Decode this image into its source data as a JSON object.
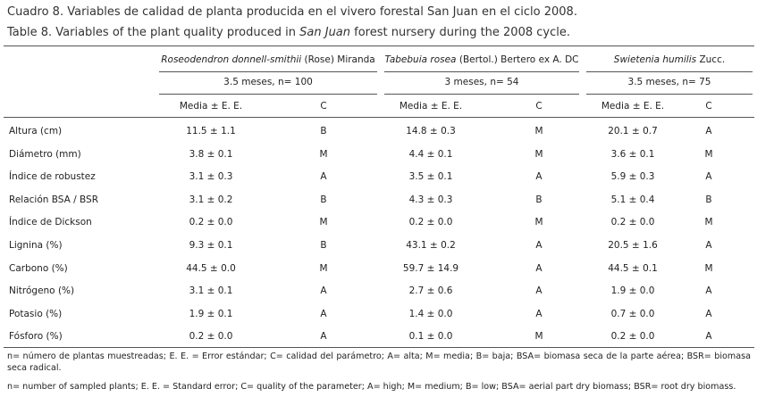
{
  "caption": {
    "es": "Cuadro 8. Variables de calidad de planta producida en el vivero forestal San Juan en el ciclo 2008.",
    "en": [
      "Table 8. Variables of the plant quality produced in ",
      "San Juan",
      " forest nursery during the 2008 cycle."
    ]
  },
  "table": {
    "species": [
      {
        "name": "Roseodendron donnell-smithii",
        "author": "(Rose) Miranda",
        "sample": "3.5 meses, n= 100"
      },
      {
        "name": "Tabebuia rosea",
        "author": "(Bertol.) Bertero ex A. DC",
        "sample": "3 meses, n= 54"
      },
      {
        "name": "Swietenia humilis",
        "author": "Zucc.",
        "sample": "3.5 meses, n= 75"
      }
    ],
    "subheaders": [
      "Media ± E. E.",
      "C"
    ],
    "rows": [
      [
        "Altura (cm)",
        "11.5 ± 1.1",
        "B",
        "14.8 ± 0.3",
        "M",
        "20.1 ± 0.7",
        "A"
      ],
      [
        "Diámetro (mm)",
        "3.8 ± 0.1",
        "M",
        "4.4 ± 0.1",
        "M",
        "3.6 ± 0.1",
        "M"
      ],
      [
        "Índice de robustez",
        "3.1 ± 0.3",
        "A",
        "3.5 ± 0.1",
        "A",
        "5.9 ± 0.3",
        "A"
      ],
      [
        "Relación BSA / BSR",
        "3.1 ± 0.2",
        "B",
        "4.3 ± 0.3",
        "B",
        "5.1 ± 0.4",
        "B"
      ],
      [
        "Índice de Dickson",
        "0.2 ± 0.0",
        "M",
        "0.2 ± 0.0",
        "M",
        "0.2 ± 0.0",
        "M"
      ],
      [
        "Lignina (%)",
        "9.3 ± 0.1",
        "B",
        "43.1 ± 0.2",
        "A",
        "20.5 ± 1.6",
        "A"
      ],
      [
        "Carbono (%)",
        "44.5 ± 0.0",
        "M",
        "59.7 ± 14.9",
        "A",
        "44.5 ± 0.1",
        "M"
      ],
      [
        "Nitrógeno (%)",
        "3.1 ± 0.1",
        "A",
        "2.7 ± 0.6",
        "A",
        "1.9 ± 0.0",
        "A"
      ],
      [
        "Potasio (%)",
        "1.9 ± 0.1",
        "A",
        "1.4 ± 0.0",
        "A",
        "0.7 ± 0.0",
        "A"
      ],
      [
        "Fósforo (%)",
        "0.2 ± 0.0",
        "A",
        "0.1 ± 0.0",
        "M",
        "0.2 ± 0.0",
        "A"
      ]
    ]
  },
  "footnotes": {
    "es": "n= número de plantas muestreadas; E. E. = Error estándar; C= calidad del parámetro; A= alta; M= media; B= baja; BSA= biomasa seca de la parte aérea; BSR= biomasa seca radical.",
    "en": "n= number of sampled plants; E. E. = Standard error; C= quality of the parameter; A= high; M= medium; B= low; BSA= aerial part dry biomass; BSR= root dry biomass."
  }
}
